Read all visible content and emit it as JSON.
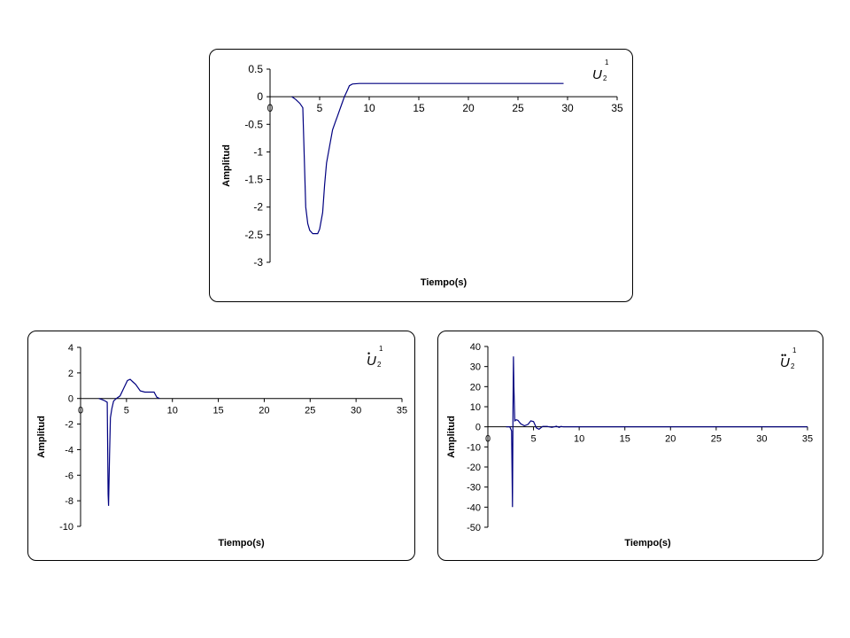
{
  "chart_data": [
    {
      "type": "line",
      "xlabel": "Tiempo(s)",
      "ylabel": "Amplitud",
      "xlim": [
        0,
        35
      ],
      "ylim": [
        -3,
        0.5
      ],
      "xticks": [
        0,
        5,
        10,
        15,
        20,
        25,
        30,
        35
      ],
      "yticks": [
        0.5,
        0,
        -0.5,
        -1,
        -1.5,
        -2,
        -2.5,
        -3
      ],
      "ytick_labels": [
        "0.5",
        "0",
        "-0.5",
        "-1",
        "-1.5",
        "-2",
        "-2.5",
        "-3"
      ],
      "annotation": {
        "symbol": "U",
        "subscript": "2",
        "superscript": "1",
        "dots": ""
      },
      "line_color": "#000080",
      "series": [
        {
          "x": [
            2.2,
            2.6,
            3.0,
            3.3,
            3.4,
            3.6,
            3.8,
            4.0,
            4.3,
            4.8,
            5.0,
            5.3,
            5.5,
            5.7,
            6.0,
            6.3,
            6.6,
            6.8,
            7.0,
            7.2,
            7.5,
            7.8,
            8.0,
            8.3,
            9.0,
            12,
            15,
            20,
            25,
            29.6
          ],
          "y": [
            0,
            -0.05,
            -0.12,
            -0.2,
            -0.8,
            -2.0,
            -2.3,
            -2.42,
            -2.48,
            -2.48,
            -2.4,
            -2.1,
            -1.6,
            -1.2,
            -0.9,
            -0.6,
            -0.45,
            -0.35,
            -0.25,
            -0.15,
            0.0,
            0.12,
            0.2,
            0.23,
            0.24,
            0.24,
            0.24,
            0.24,
            0.24,
            0.24
          ]
        }
      ]
    },
    {
      "type": "line",
      "xlabel": "Tiempo(s)",
      "ylabel": "Amplitud",
      "xlim": [
        0,
        35
      ],
      "ylim": [
        -10,
        4
      ],
      "xticks": [
        0,
        5,
        10,
        15,
        20,
        25,
        30,
        35
      ],
      "yticks": [
        4,
        2,
        0,
        -2,
        -4,
        -6,
        -8,
        -10
      ],
      "ytick_labels": [
        "4",
        "2",
        "0",
        "-2",
        "-4",
        "-6",
        "-8",
        "-10"
      ],
      "annotation": {
        "symbol": "U",
        "subscript": "2",
        "superscript": "1",
        "dots": "•"
      },
      "line_color": "#000080",
      "series": [
        {
          "x": [
            2.0,
            2.4,
            2.7,
            2.9,
            3.0,
            3.05,
            3.15,
            3.25,
            3.4,
            3.6,
            3.9,
            4.3,
            4.7,
            5.1,
            5.4,
            5.7,
            6.0,
            6.5,
            7.0,
            7.5,
            8.0,
            8.3,
            8.6
          ],
          "y": [
            0,
            -0.1,
            -0.2,
            -0.3,
            -7.5,
            -8.4,
            -4.5,
            -1.5,
            -0.8,
            -0.2,
            0.0,
            0.2,
            0.8,
            1.4,
            1.5,
            1.3,
            1.1,
            0.6,
            0.5,
            0.5,
            0.5,
            0.1,
            0.0
          ]
        }
      ]
    },
    {
      "type": "line",
      "xlabel": "Tiempo(s)",
      "ylabel": "Amplitud",
      "xlim": [
        0,
        35
      ],
      "ylim": [
        -50,
        40
      ],
      "xticks": [
        0,
        5,
        10,
        15,
        20,
        25,
        30,
        35
      ],
      "yticks": [
        40,
        30,
        20,
        10,
        0,
        -10,
        -20,
        -30,
        -40,
        -50
      ],
      "ytick_labels": [
        "40",
        "30",
        "20",
        "10",
        "0",
        "-10",
        "-20",
        "-30",
        "-40",
        "-50"
      ],
      "annotation": {
        "symbol": "U",
        "subscript": "2",
        "superscript": "1",
        "dots": "••"
      },
      "line_color": "#000080",
      "series": [
        {
          "x": [
            2.0,
            2.4,
            2.6,
            2.7,
            2.75,
            2.8,
            2.85,
            2.95,
            3.1,
            3.3,
            3.6,
            4.0,
            4.4,
            4.7,
            5.0,
            5.3,
            5.6,
            6.0,
            6.5,
            7.0,
            7.5,
            7.8,
            8.0,
            8.3,
            9.0,
            12,
            15,
            20,
            25,
            30,
            35
          ],
          "y": [
            0,
            0,
            -2,
            -40,
            10,
            35,
            20,
            3,
            3.5,
            3.2,
            1.5,
            0.5,
            1.2,
            3.0,
            2.6,
            -0.5,
            -1.2,
            0.2,
            0.2,
            -0.3,
            0.3,
            -0.3,
            0.2,
            0,
            0,
            0,
            0,
            0,
            0,
            0,
            0
          ]
        }
      ]
    }
  ]
}
